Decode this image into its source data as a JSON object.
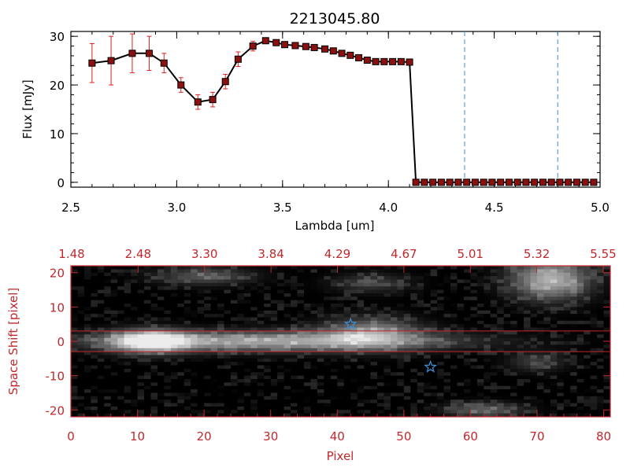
{
  "chart_data": [
    {
      "type": "line",
      "title": "2213045.80",
      "xlabel": "Lambda [um]",
      "ylabel": "Flux [mJy]",
      "xlim": [
        2.5,
        5.0
      ],
      "ylim": [
        -1,
        31
      ],
      "xticks": [
        "2.5",
        "3.0",
        "3.5",
        "4.0",
        "4.5",
        "5.0"
      ],
      "yticks": [
        "0",
        "10",
        "20",
        "30"
      ],
      "series": [
        {
          "x": [
            2.6,
            2.69,
            2.79,
            2.87,
            2.94,
            3.02,
            3.1,
            3.17,
            3.23,
            3.29,
            3.36,
            3.42,
            3.47,
            3.51,
            3.56,
            3.61,
            3.65,
            3.7,
            3.74,
            3.78,
            3.82,
            3.86,
            3.9,
            3.94,
            3.98,
            4.02,
            4.06,
            4.1,
            4.13,
            4.17,
            4.21,
            4.25,
            4.29,
            4.33,
            4.37,
            4.41,
            4.45,
            4.49,
            4.53,
            4.57,
            4.61,
            4.65,
            4.69,
            4.73,
            4.77,
            4.81,
            4.85,
            4.89,
            4.93,
            4.97
          ],
          "y": [
            24.5,
            25.0,
            26.5,
            26.5,
            24.5,
            20.0,
            16.5,
            17.0,
            20.7,
            25.3,
            28.0,
            29.1,
            28.7,
            28.3,
            28.1,
            27.9,
            27.7,
            27.4,
            27.0,
            26.5,
            26.1,
            25.6,
            25.1,
            24.8,
            24.8,
            24.8,
            24.8,
            24.7,
            0,
            0,
            0,
            0,
            0,
            0,
            0,
            0,
            0,
            0,
            0,
            0,
            0,
            0,
            0,
            0,
            0,
            0,
            0,
            0,
            0,
            0
          ],
          "yerr": [
            4.0,
            5.0,
            4.0,
            3.5,
            2.0,
            1.5,
            1.5,
            1.5,
            1.5,
            1.5,
            1,
            0.5,
            0.5,
            0.5,
            0.5,
            0.5,
            0.5,
            0.5,
            0.5,
            0.5,
            0.5,
            0.5,
            0.5,
            0.5,
            0.5,
            0.5,
            0.5,
            0.5,
            0.3,
            0.3,
            0.3,
            0.3,
            0.3,
            0.3,
            0.3,
            0.3,
            0.3,
            0.3,
            0.3,
            0.3,
            0.3,
            0.3,
            0.3,
            0.3,
            0.3,
            0.3,
            0.3,
            0.3,
            0.3,
            0.3
          ]
        }
      ],
      "vlines": [
        4.36,
        4.8
      ],
      "line_color": "#000000",
      "marker_color": "#8b1010",
      "error_color": "#e02020",
      "vline_color": "#3a8fd8"
    },
    {
      "type": "heatmap",
      "xlabel": "Pixel",
      "ylabel": "Space Shift [pixel]",
      "xlim": [
        0,
        81
      ],
      "ylim": [
        -22,
        22
      ],
      "xticks": [
        "0",
        "10",
        "20",
        "30",
        "40",
        "50",
        "60",
        "70",
        "80"
      ],
      "yticks": [
        "-20",
        "-10",
        "0",
        "10",
        "20"
      ],
      "top_ticks": [
        "1.48",
        "2.48",
        "3.30",
        "3.84",
        "4.29",
        "4.67",
        "5.01",
        "5.32",
        "5.55"
      ],
      "hlines": [
        3,
        -3
      ],
      "stars": [
        {
          "x": 42,
          "y": 5
        },
        {
          "x": 54,
          "y": -7.5
        }
      ],
      "axis_color": "#c0282d",
      "star_color": "#3a8fd8"
    }
  ]
}
